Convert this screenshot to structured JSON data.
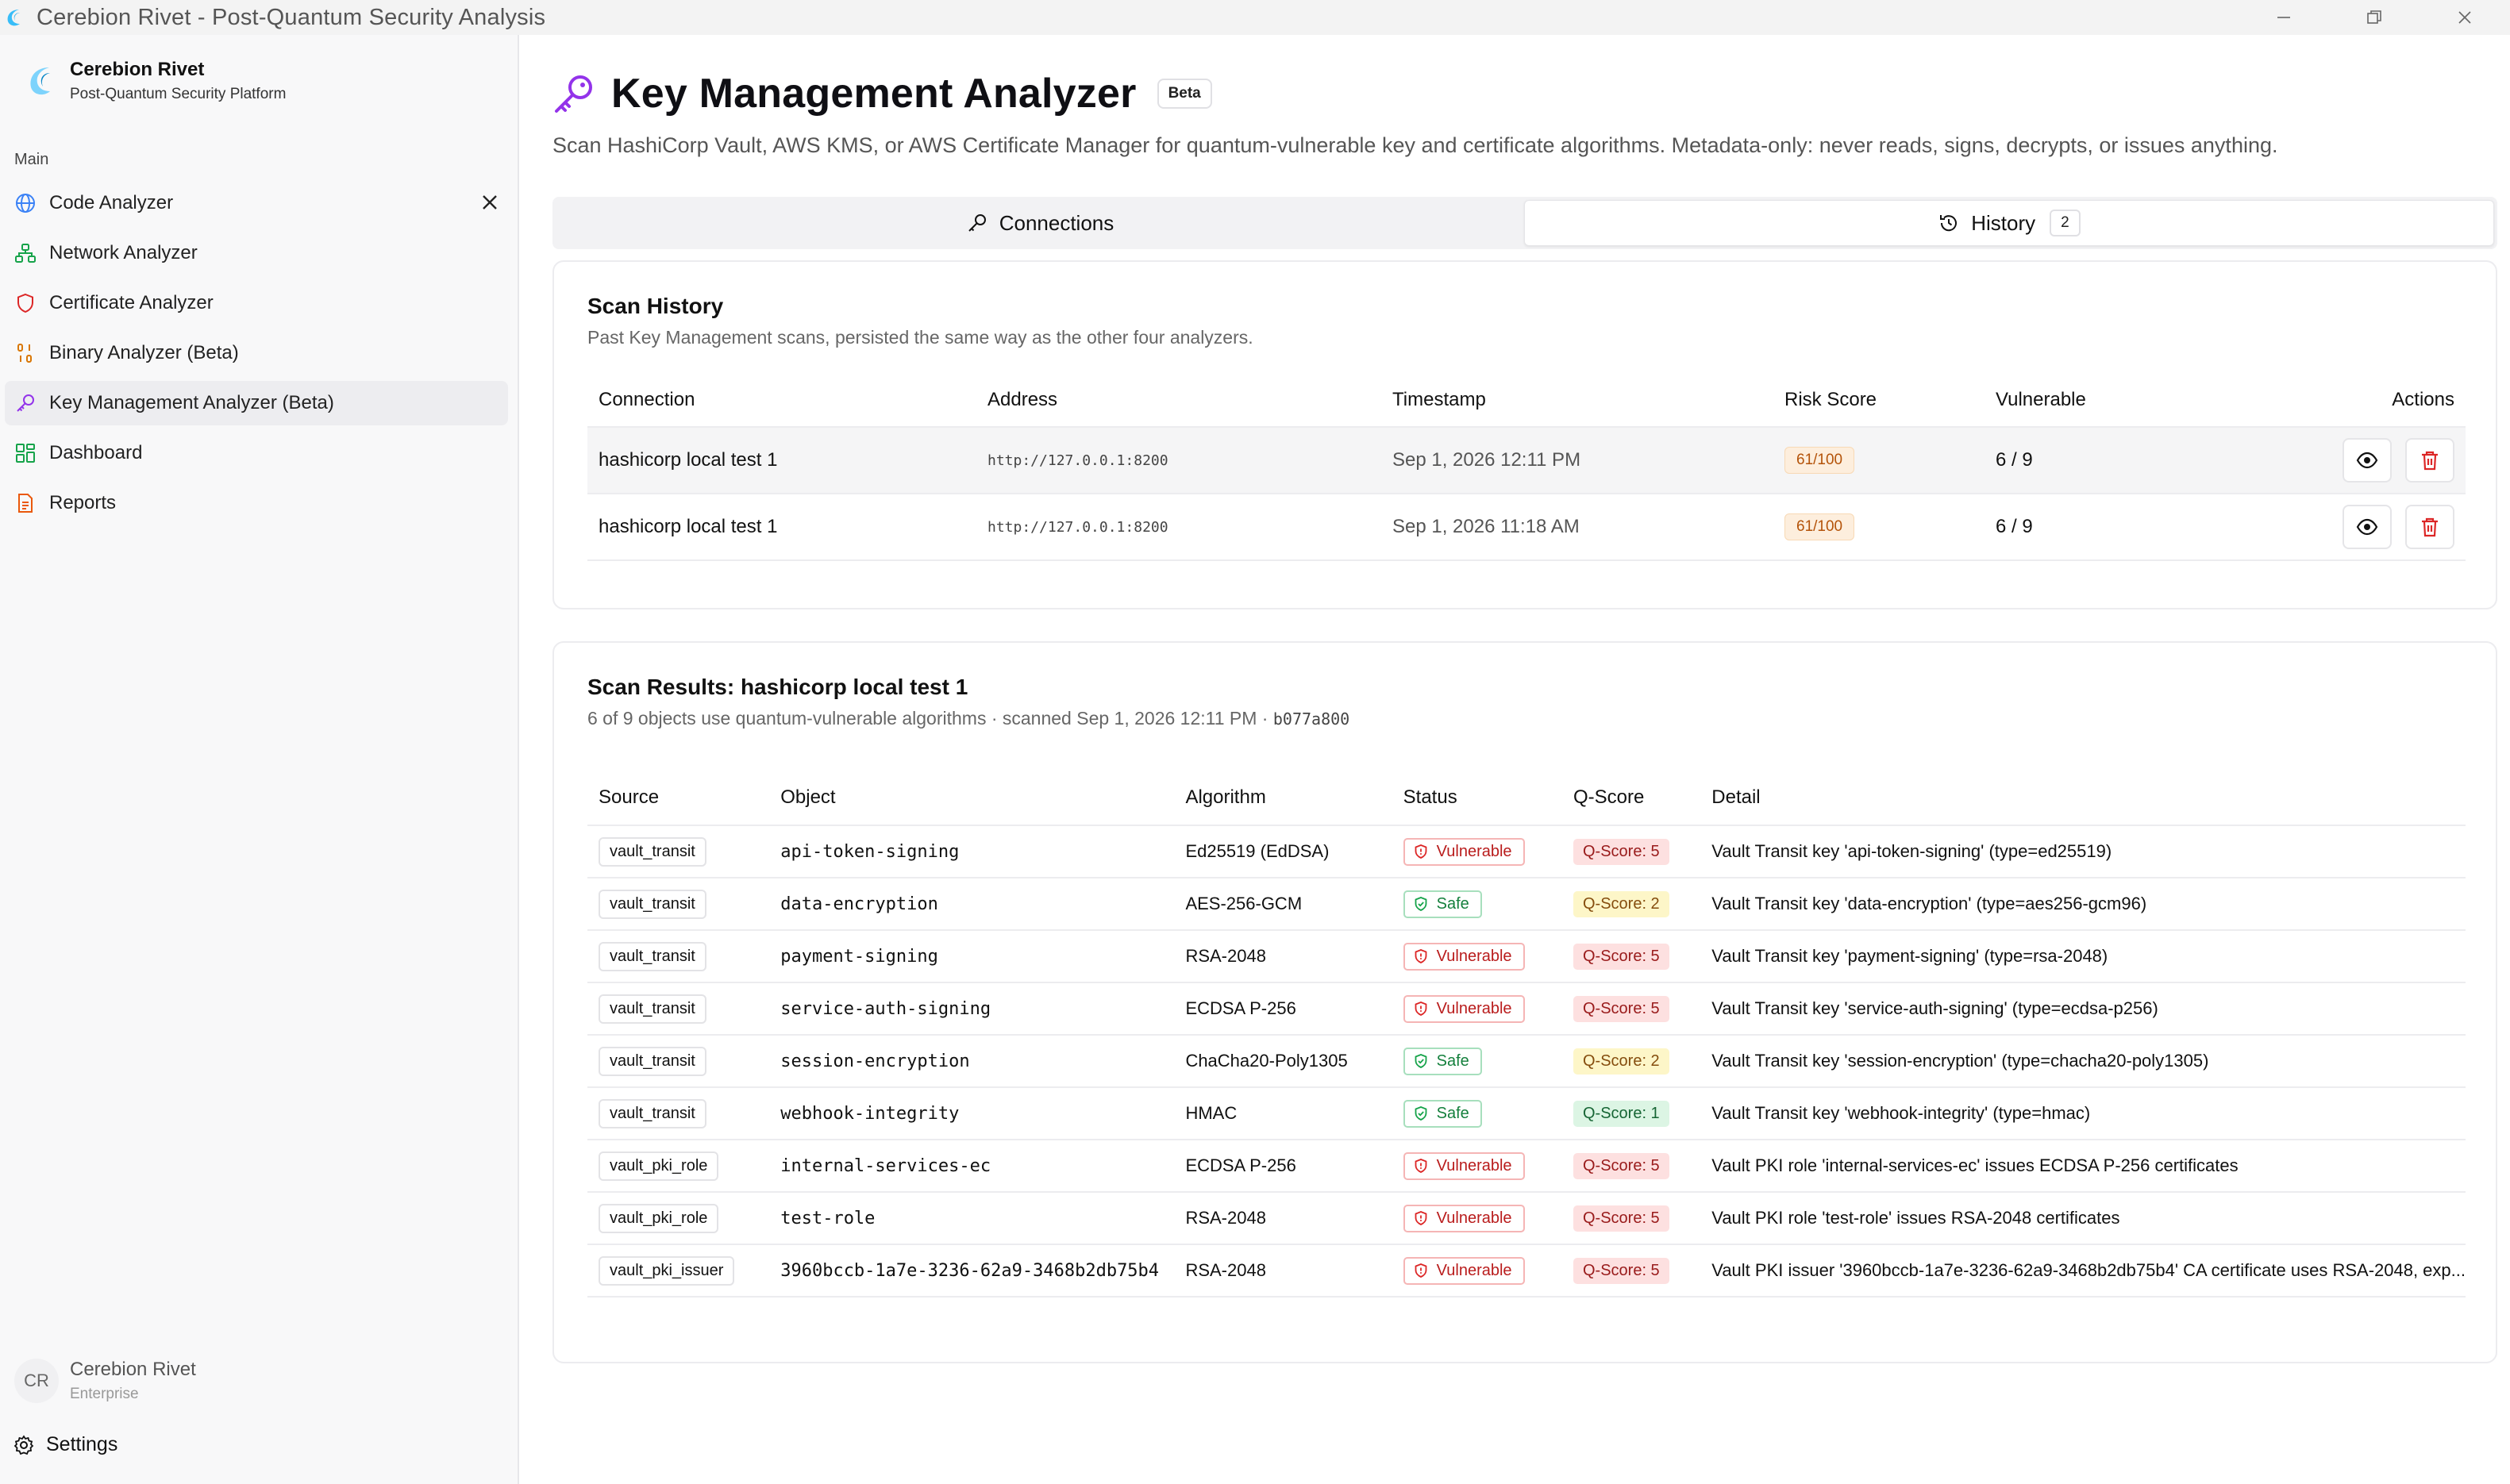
{
  "window": {
    "title": "Cerebion Rivet - Post-Quantum Security Analysis"
  },
  "sidebar": {
    "brand_name": "Cerebion Rivet",
    "brand_sub": "Post-Quantum Security Platform",
    "section_label": "Main",
    "items": [
      {
        "label": "Code Analyzer",
        "icon": "globe-code-icon",
        "color": "#3b82f6"
      },
      {
        "label": "Network Analyzer",
        "icon": "network-icon",
        "color": "#16a34a"
      },
      {
        "label": "Certificate Analyzer",
        "icon": "shield-icon",
        "color": "#dc2626"
      },
      {
        "label": "Binary Analyzer (Beta)",
        "icon": "binary-icon",
        "color": "#d97706"
      },
      {
        "label": "Key Management Analyzer (Beta)",
        "icon": "key-icon",
        "color": "#9333ea"
      },
      {
        "label": "Dashboard",
        "icon": "grid-icon",
        "color": "#16a34a"
      },
      {
        "label": "Reports",
        "icon": "document-icon",
        "color": "#ea580c"
      }
    ],
    "user": {
      "initials": "CR",
      "name": "Cerebion Rivet",
      "plan": "Enterprise"
    },
    "settings_label": "Settings"
  },
  "header": {
    "title": "Key Management Analyzer",
    "badge": "Beta",
    "description": "Scan HashiCorp Vault, AWS KMS, or AWS Certificate Manager for quantum-vulnerable key and certificate algorithms. Metadata-only: never reads, signs, decrypts, or issues anything."
  },
  "tabs": [
    {
      "label": "Connections",
      "icon": "key-icon"
    },
    {
      "label": "History",
      "icon": "history-icon",
      "count": "2"
    }
  ],
  "history": {
    "title": "Scan History",
    "subtitle": "Past Key Management scans, persisted the same way as the other four analyzers.",
    "columns": [
      "Connection",
      "Address",
      "Timestamp",
      "Risk Score",
      "Vulnerable",
      "Actions"
    ],
    "rows": [
      {
        "connection": "hashicorp local test 1",
        "address": "http://127.0.0.1:8200",
        "timestamp": "Sep 1, 2026 12:11 PM",
        "risk": "61/100",
        "vulnerable": "6 / 9"
      },
      {
        "connection": "hashicorp local test 1",
        "address": "http://127.0.0.1:8200",
        "timestamp": "Sep 1, 2026 11:18 AM",
        "risk": "61/100",
        "vulnerable": "6 / 9"
      }
    ]
  },
  "results": {
    "title": "Scan Results: hashicorp local test 1",
    "summary": "6 of 9 objects use quantum-vulnerable algorithms · scanned Sep 1, 2026 12:11 PM · ",
    "scan_id": "b077a800",
    "columns": [
      "Source",
      "Object",
      "Algorithm",
      "Status",
      "Q-Score",
      "Detail"
    ],
    "rows": [
      {
        "source": "vault_transit",
        "object": "api-token-signing",
        "algorithm": "Ed25519 (EdDSA)",
        "status": "Vulnerable",
        "qscore": "Q-Score: 5",
        "q": 5,
        "detail": "Vault Transit key 'api-token-signing' (type=ed25519)"
      },
      {
        "source": "vault_transit",
        "object": "data-encryption",
        "algorithm": "AES-256-GCM",
        "status": "Safe",
        "qscore": "Q-Score: 2",
        "q": 2,
        "detail": "Vault Transit key 'data-encryption' (type=aes256-gcm96)"
      },
      {
        "source": "vault_transit",
        "object": "payment-signing",
        "algorithm": "RSA-2048",
        "status": "Vulnerable",
        "qscore": "Q-Score: 5",
        "q": 5,
        "detail": "Vault Transit key 'payment-signing' (type=rsa-2048)"
      },
      {
        "source": "vault_transit",
        "object": "service-auth-signing",
        "algorithm": "ECDSA P-256",
        "status": "Vulnerable",
        "qscore": "Q-Score: 5",
        "q": 5,
        "detail": "Vault Transit key 'service-auth-signing' (type=ecdsa-p256)"
      },
      {
        "source": "vault_transit",
        "object": "session-encryption",
        "algorithm": "ChaCha20-Poly1305",
        "status": "Safe",
        "qscore": "Q-Score: 2",
        "q": 2,
        "detail": "Vault Transit key 'session-encryption' (type=chacha20-poly1305)"
      },
      {
        "source": "vault_transit",
        "object": "webhook-integrity",
        "algorithm": "HMAC",
        "status": "Safe",
        "qscore": "Q-Score: 1",
        "q": 1,
        "detail": "Vault Transit key 'webhook-integrity' (type=hmac)"
      },
      {
        "source": "vault_pki_role",
        "object": "internal-services-ec",
        "algorithm": "ECDSA P-256",
        "status": "Vulnerable",
        "qscore": "Q-Score: 5",
        "q": 5,
        "detail": "Vault PKI role 'internal-services-ec' issues ECDSA P-256 certificates"
      },
      {
        "source": "vault_pki_role",
        "object": "test-role",
        "algorithm": "RSA-2048",
        "status": "Vulnerable",
        "qscore": "Q-Score: 5",
        "q": 5,
        "detail": "Vault PKI role 'test-role' issues RSA-2048 certificates"
      },
      {
        "source": "vault_pki_issuer",
        "object": "3960bccb-1a7e-3236-62a9-3468b2db75b4",
        "algorithm": "RSA-2048",
        "status": "Vulnerable",
        "qscore": "Q-Score: 5",
        "q": 5,
        "detail": "Vault PKI issuer '3960bccb-1a7e-3236-62a9-3468b2db75b4' CA certificate uses RSA-2048, exp..."
      }
    ]
  }
}
